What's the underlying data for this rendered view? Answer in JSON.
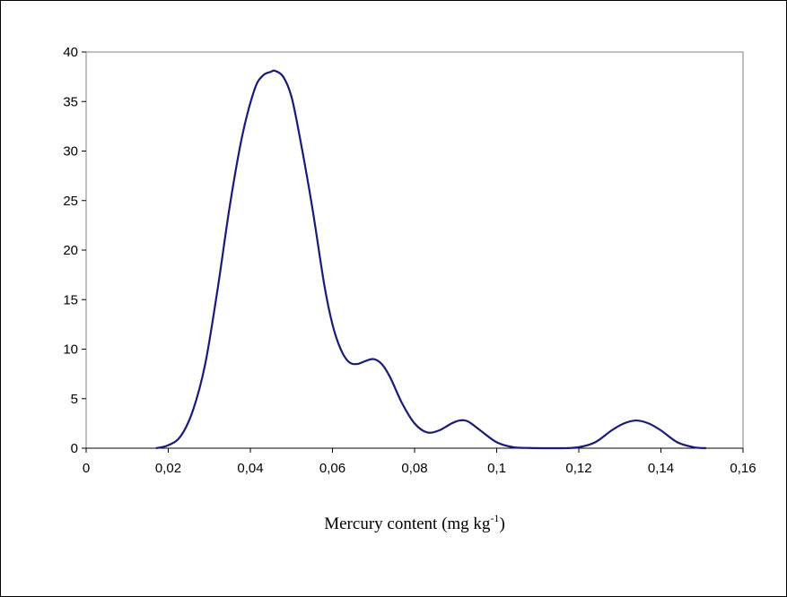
{
  "chart_data": {
    "type": "line",
    "title": "",
    "xlabel": "Mercury content (mg kg",
    "xlabel_superscript": "-1",
    "xlabel_suffix": ")",
    "ylabel": "",
    "xlim": [
      0,
      0.16
    ],
    "ylim": [
      0,
      40
    ],
    "grid": false,
    "legend": "none",
    "x_ticks": [
      {
        "value": 0,
        "label": "0"
      },
      {
        "value": 0.02,
        "label": "0,02"
      },
      {
        "value": 0.04,
        "label": "0,04"
      },
      {
        "value": 0.06,
        "label": "0,06"
      },
      {
        "value": 0.08,
        "label": "0,08"
      },
      {
        "value": 0.1,
        "label": "0,1"
      },
      {
        "value": 0.12,
        "label": "0,12"
      },
      {
        "value": 0.14,
        "label": "0,14"
      },
      {
        "value": 0.16,
        "label": "0,16"
      }
    ],
    "y_ticks": [
      {
        "value": 0,
        "label": "0"
      },
      {
        "value": 5,
        "label": "5"
      },
      {
        "value": 10,
        "label": "10"
      },
      {
        "value": 15,
        "label": "15"
      },
      {
        "value": 20,
        "label": "20"
      },
      {
        "value": 25,
        "label": "25"
      },
      {
        "value": 30,
        "label": "30"
      },
      {
        "value": 35,
        "label": "35"
      },
      {
        "value": 40,
        "label": "40"
      }
    ],
    "series": [
      {
        "color": "#1a1a7a",
        "x": [
          0.017,
          0.02,
          0.023,
          0.026,
          0.029,
          0.032,
          0.035,
          0.038,
          0.041,
          0.043,
          0.045,
          0.046,
          0.048,
          0.05,
          0.052,
          0.055,
          0.058,
          0.06,
          0.062,
          0.064,
          0.066,
          0.068,
          0.07,
          0.072,
          0.074,
          0.077,
          0.08,
          0.083,
          0.086,
          0.089,
          0.091,
          0.093,
          0.096,
          0.1,
          0.104,
          0.108,
          0.112,
          0.116,
          0.12,
          0.124,
          0.128,
          0.131,
          0.134,
          0.137,
          0.14,
          0.144,
          0.148,
          0.151
        ],
        "y": [
          0,
          0.3,
          1.2,
          3.8,
          8.5,
          16,
          24.5,
          31.5,
          36.2,
          37.6,
          38,
          38.1,
          37.5,
          35.5,
          31.5,
          24.5,
          16.5,
          12.5,
          10,
          8.7,
          8.5,
          8.8,
          9,
          8.5,
          7.2,
          4.5,
          2.5,
          1.6,
          1.8,
          2.5,
          2.8,
          2.7,
          1.8,
          0.6,
          0.1,
          0.02,
          0,
          0,
          0.1,
          0.6,
          1.8,
          2.5,
          2.8,
          2.5,
          1.8,
          0.6,
          0.1,
          0
        ]
      }
    ]
  }
}
